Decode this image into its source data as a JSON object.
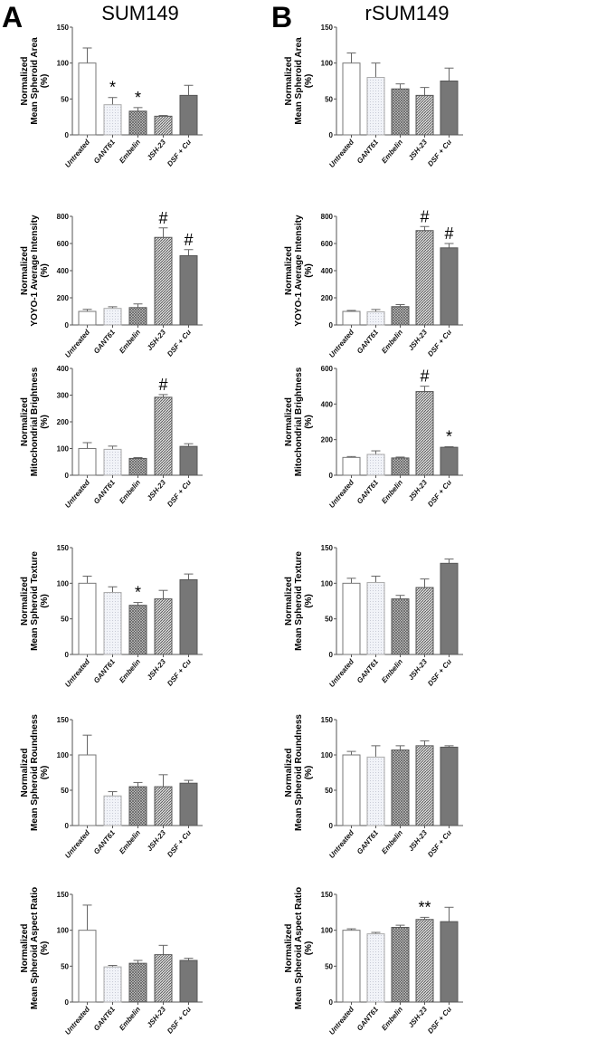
{
  "panel_labels": [
    "A",
    "B"
  ],
  "column_titles": [
    "SUM149",
    "rSUM149"
  ],
  "colors": {
    "Untreated": "#ffffff",
    "GANT61": "#eef0f6",
    "Embelin": "#9a9a9a",
    "JSH-23": "#b0b0b0",
    "DSF + Cu": "#777777",
    "axis": "#555555"
  },
  "chart_data": [
    {
      "type": "bar",
      "column": "A",
      "title": "SUM149",
      "ylabel": [
        "Normalized",
        "Mean Spheroid Area",
        "(%)"
      ],
      "categories": [
        "Untreated",
        "GANT61",
        "Embelin",
        "JSH-23",
        "DSF + Cu"
      ],
      "values": [
        100,
        42,
        33,
        26,
        55
      ],
      "errors": [
        21,
        10,
        5,
        1,
        14
      ],
      "annotations": [
        "",
        "*",
        "*",
        "",
        ""
      ],
      "ylim": [
        0,
        150
      ],
      "yticks": [
        0,
        50,
        100,
        150
      ]
    },
    {
      "type": "bar",
      "column": "B",
      "title": "rSUM149",
      "ylabel": [
        "Normalized",
        "Mean Spheroid Area",
        "(%)"
      ],
      "categories": [
        "Untreated",
        "GANT61",
        "Embelin",
        "JSH-23",
        "DSF + Cu"
      ],
      "values": [
        100,
        80,
        64,
        55,
        75
      ],
      "errors": [
        14,
        20,
        7,
        11,
        18
      ],
      "annotations": [
        "",
        "",
        "",
        "",
        ""
      ],
      "ylim": [
        0,
        150
      ],
      "yticks": [
        0,
        50,
        100,
        150
      ]
    },
    {
      "type": "bar",
      "column": "A",
      "ylabel": [
        "Normalized",
        "YOYO-1 Average Intensity",
        "(%)"
      ],
      "categories": [
        "Untreated",
        "GANT61",
        "Embelin",
        "JSH-23",
        "DSF + Cu"
      ],
      "values": [
        100,
        122,
        128,
        645,
        510
      ],
      "errors": [
        15,
        12,
        27,
        70,
        45
      ],
      "annotations": [
        "",
        "",
        "",
        "#",
        "#"
      ],
      "ylim": [
        0,
        800
      ],
      "yticks": [
        0,
        200,
        400,
        600,
        800
      ]
    },
    {
      "type": "bar",
      "column": "B",
      "ylabel": [
        "Normalized",
        "YOYO-1 Average Intensity",
        "(%)"
      ],
      "categories": [
        "Untreated",
        "GANT61",
        "Embelin",
        "JSH-23",
        "DSF + Cu"
      ],
      "values": [
        100,
        97,
        135,
        695,
        568
      ],
      "errors": [
        7,
        17,
        15,
        30,
        32
      ],
      "annotations": [
        "",
        "",
        "",
        "#",
        "#"
      ],
      "ylim": [
        0,
        800
      ],
      "yticks": [
        0,
        200,
        400,
        600,
        800
      ]
    },
    {
      "type": "bar",
      "column": "A",
      "ylabel": [
        "Normalized",
        "Mitochondrial Brightness",
        "(%)"
      ],
      "categories": [
        "Untreated",
        "GANT61",
        "Embelin",
        "JSH-23",
        "DSF + Cu"
      ],
      "values": [
        100,
        97,
        63,
        292,
        108
      ],
      "errors": [
        22,
        12,
        3,
        10,
        10
      ],
      "annotations": [
        "",
        "",
        "",
        "#",
        ""
      ],
      "ylim": [
        0,
        400
      ],
      "yticks": [
        0,
        100,
        200,
        300,
        400
      ]
    },
    {
      "type": "bar",
      "column": "B",
      "ylabel": [
        "Normalized",
        "Mitochondrial Brightness",
        "(%)"
      ],
      "categories": [
        "Untreated",
        "GANT61",
        "Embelin",
        "JSH-23",
        "DSF + Cu"
      ],
      "values": [
        100,
        117,
        97,
        470,
        157
      ],
      "errors": [
        5,
        20,
        5,
        30,
        3
      ],
      "annotations": [
        "",
        "",
        "",
        "#",
        "*"
      ],
      "ylim": [
        0,
        600
      ],
      "yticks": [
        0,
        200,
        400,
        600
      ]
    },
    {
      "type": "bar",
      "column": "A",
      "ylabel": [
        "Normalized",
        "Mean Spheroid Texture",
        "(%)"
      ],
      "categories": [
        "Untreated",
        "GANT61",
        "Embelin",
        "JSH-23",
        "DSF + Cu"
      ],
      "values": [
        100,
        87,
        69,
        78,
        105
      ],
      "errors": [
        10,
        8,
        4,
        12,
        8
      ],
      "annotations": [
        "",
        "",
        "*",
        "",
        ""
      ],
      "ylim": [
        0,
        150
      ],
      "yticks": [
        0,
        50,
        100,
        150
      ]
    },
    {
      "type": "bar",
      "column": "B",
      "ylabel": [
        "Normalized",
        "Mean Spheroid Texture",
        "(%)"
      ],
      "categories": [
        "Untreated",
        "GANT61",
        "Embelin",
        "JSH-23",
        "DSF + Cu"
      ],
      "values": [
        100,
        101,
        78,
        94,
        128
      ],
      "errors": [
        7,
        9,
        5,
        12,
        6
      ],
      "annotations": [
        "",
        "",
        "",
        "",
        ""
      ],
      "ylim": [
        0,
        150
      ],
      "yticks": [
        0,
        50,
        100,
        150
      ]
    },
    {
      "type": "bar",
      "column": "A",
      "ylabel": [
        "Normalized",
        "Mean Spheroid Roundness",
        "(%)"
      ],
      "categories": [
        "Untreated",
        "GANT61",
        "Embelin",
        "JSH-23",
        "DSF + Cu"
      ],
      "values": [
        100,
        42,
        55,
        55,
        60
      ],
      "errors": [
        28,
        6,
        6,
        17,
        4
      ],
      "annotations": [
        "",
        "",
        "",
        "",
        ""
      ],
      "ylim": [
        0,
        150
      ],
      "yticks": [
        0,
        50,
        100,
        150
      ]
    },
    {
      "type": "bar",
      "column": "B",
      "ylabel": [
        "Normalized",
        "Mean Spheroid Roundness",
        "(%)"
      ],
      "categories": [
        "Untreated",
        "GANT61",
        "Embelin",
        "JSH-23",
        "DSF + Cu"
      ],
      "values": [
        100,
        97,
        107,
        113,
        111
      ],
      "errors": [
        5,
        16,
        6,
        7,
        2
      ],
      "annotations": [
        "",
        "",
        "",
        "",
        ""
      ],
      "ylim": [
        0,
        150
      ],
      "yticks": [
        0,
        50,
        100,
        150
      ]
    },
    {
      "type": "bar",
      "column": "A",
      "ylabel": [
        "Normalized",
        "Mean Spheroid Aspect Ratio",
        "(%)"
      ],
      "categories": [
        "Untreated",
        "GANT61",
        "Embelin",
        "JSH-23",
        "DSF + Cu"
      ],
      "values": [
        100,
        49,
        54,
        66,
        58
      ],
      "errors": [
        35,
        2,
        4,
        13,
        3
      ],
      "annotations": [
        "",
        "",
        "",
        "",
        ""
      ],
      "ylim": [
        0,
        150
      ],
      "yticks": [
        0,
        50,
        100,
        150
      ]
    },
    {
      "type": "bar",
      "column": "B",
      "ylabel": [
        "Normalized",
        "Mean Spheroid Aspect Ratio",
        "(%)"
      ],
      "categories": [
        "Untreated",
        "GANT61",
        "Embelin",
        "JSH-23",
        "DSF + Cu"
      ],
      "values": [
        100,
        95,
        104,
        115,
        112
      ],
      "errors": [
        2,
        2,
        3,
        3,
        20
      ],
      "annotations": [
        "",
        "",
        "",
        "**",
        ""
      ],
      "ylim": [
        0,
        150
      ],
      "yticks": [
        0,
        50,
        100,
        150
      ]
    }
  ]
}
